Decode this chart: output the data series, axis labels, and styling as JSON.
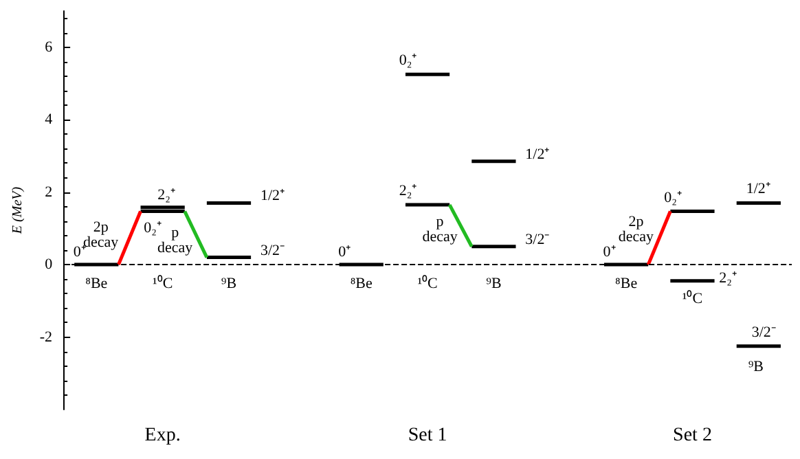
{
  "chart_data": {
    "type": "line",
    "ylabel": "E (MeV)",
    "categories": [
      null,
      null,
      null,
      null,
      "Exp.",
      null,
      null,
      null,
      null,
      null,
      null,
      null,
      null,
      null,
      null,
      null,
      "Set 1",
      null,
      null,
      null,
      null,
      null,
      null,
      null,
      null,
      null,
      null,
      null,
      "Set 2",
      null,
      null,
      null,
      null
    ],
    "ylim": [
      -4,
      7
    ],
    "yticks": [
      -2,
      0,
      2,
      4,
      6
    ],
    "marker": "none",
    "line_style": "solid",
    "grid": false,
    "series": [
      {
        "color": "#000000",
        "values": [
          0,
          0,
          0,
          null,
          null,
          null,
          null,
          null,
          null,
          null,
          null,
          null,
          null,
          null,
          null,
          null,
          null,
          null,
          null,
          null,
          null,
          null,
          null,
          null,
          null,
          null,
          null,
          null,
          null,
          null,
          null,
          null,
          null
        ]
      },
      {
        "color": "#000000",
        "values": [
          null,
          null,
          null,
          1.58,
          1.58,
          1.58,
          null,
          null,
          null,
          null,
          null,
          null,
          null,
          null,
          null,
          null,
          null,
          null,
          null,
          null,
          null,
          null,
          null,
          null,
          null,
          null,
          null,
          null,
          null,
          null,
          null,
          null,
          null
        ]
      },
      {
        "color": "#000000",
        "values": [
          null,
          null,
          null,
          1.47,
          1.47,
          1.47,
          null,
          null,
          null,
          null,
          null,
          null,
          null,
          null,
          null,
          null,
          null,
          null,
          null,
          null,
          null,
          null,
          null,
          null,
          null,
          null,
          null,
          null,
          null,
          null,
          null,
          null,
          null
        ]
      },
      {
        "color": "#000000",
        "values": [
          null,
          null,
          null,
          null,
          null,
          null,
          0.2,
          0.2,
          0.2,
          null,
          null,
          null,
          null,
          null,
          null,
          null,
          null,
          null,
          null,
          null,
          null,
          null,
          null,
          null,
          null,
          null,
          null,
          null,
          null,
          null,
          null,
          null,
          null
        ]
      },
      {
        "color": "#000000",
        "values": [
          null,
          null,
          null,
          null,
          null,
          null,
          1.7,
          1.7,
          1.7,
          null,
          null,
          null,
          null,
          null,
          null,
          null,
          null,
          null,
          null,
          null,
          null,
          null,
          null,
          null,
          null,
          null,
          null,
          null,
          null,
          null,
          null,
          null,
          null
        ]
      },
      {
        "color": "#ff0000",
        "values": [
          null,
          null,
          0,
          1.47,
          null,
          null,
          null,
          null,
          null,
          null,
          null,
          null,
          null,
          null,
          null,
          null,
          null,
          null,
          null,
          null,
          null,
          null,
          null,
          null,
          null,
          null,
          null,
          null,
          null,
          null,
          null,
          null,
          null
        ]
      },
      {
        "color": "#22bb22",
        "values": [
          null,
          null,
          null,
          null,
          null,
          1.47,
          0.2,
          null,
          null,
          null,
          null,
          null,
          null,
          null,
          null,
          null,
          null,
          null,
          null,
          null,
          null,
          null,
          null,
          null,
          null,
          null,
          null,
          null,
          null,
          null,
          null,
          null,
          null
        ]
      },
      {
        "color": "#000000",
        "values": [
          null,
          null,
          null,
          null,
          null,
          null,
          null,
          null,
          null,
          null,
          null,
          null,
          0,
          0,
          0,
          null,
          null,
          null,
          null,
          null,
          null,
          null,
          null,
          null,
          null,
          null,
          null,
          null,
          null,
          null,
          null,
          null,
          null
        ]
      },
      {
        "color": "#000000",
        "values": [
          null,
          null,
          null,
          null,
          null,
          null,
          null,
          null,
          null,
          null,
          null,
          null,
          null,
          null,
          null,
          5.25,
          5.25,
          5.25,
          null,
          null,
          null,
          null,
          null,
          null,
          null,
          null,
          null,
          null,
          null,
          null,
          null,
          null,
          null
        ]
      },
      {
        "color": "#000000",
        "values": [
          null,
          null,
          null,
          null,
          null,
          null,
          null,
          null,
          null,
          null,
          null,
          null,
          null,
          null,
          null,
          1.65,
          1.65,
          1.65,
          null,
          null,
          null,
          null,
          null,
          null,
          null,
          null,
          null,
          null,
          null,
          null,
          null,
          null,
          null
        ]
      },
      {
        "color": "#000000",
        "values": [
          null,
          null,
          null,
          null,
          null,
          null,
          null,
          null,
          null,
          null,
          null,
          null,
          null,
          null,
          null,
          null,
          null,
          null,
          2.85,
          2.85,
          2.85,
          null,
          null,
          null,
          null,
          null,
          null,
          null,
          null,
          null,
          null,
          null,
          null
        ]
      },
      {
        "color": "#000000",
        "values": [
          null,
          null,
          null,
          null,
          null,
          null,
          null,
          null,
          null,
          null,
          null,
          null,
          null,
          null,
          null,
          null,
          null,
          null,
          0.5,
          0.5,
          0.5,
          null,
          null,
          null,
          null,
          null,
          null,
          null,
          null,
          null,
          null,
          null,
          null
        ]
      },
      {
        "color": "#22bb22",
        "values": [
          null,
          null,
          null,
          null,
          null,
          null,
          null,
          null,
          null,
          null,
          null,
          null,
          null,
          null,
          null,
          null,
          null,
          1.65,
          0.5,
          null,
          null,
          null,
          null,
          null,
          null,
          null,
          null,
          null,
          null,
          null,
          null,
          null,
          null
        ]
      },
      {
        "color": "#000000",
        "values": [
          null,
          null,
          null,
          null,
          null,
          null,
          null,
          null,
          null,
          null,
          null,
          null,
          null,
          null,
          null,
          null,
          null,
          null,
          null,
          null,
          null,
          null,
          null,
          null,
          0,
          0,
          0,
          null,
          null,
          null,
          null,
          null,
          null
        ]
      },
      {
        "color": "#000000",
        "values": [
          null,
          null,
          null,
          null,
          null,
          null,
          null,
          null,
          null,
          null,
          null,
          null,
          null,
          null,
          null,
          null,
          null,
          null,
          null,
          null,
          null,
          null,
          null,
          null,
          null,
          null,
          null,
          1.47,
          1.47,
          1.47,
          null,
          null,
          null
        ]
      },
      {
        "color": "#000000",
        "values": [
          null,
          null,
          null,
          null,
          null,
          null,
          null,
          null,
          null,
          null,
          null,
          null,
          null,
          null,
          null,
          null,
          null,
          null,
          null,
          null,
          null,
          null,
          null,
          null,
          null,
          null,
          null,
          -0.45,
          -0.45,
          -0.45,
          null,
          null,
          null
        ]
      },
      {
        "color": "#000000",
        "values": [
          null,
          null,
          null,
          null,
          null,
          null,
          null,
          null,
          null,
          null,
          null,
          null,
          null,
          null,
          null,
          null,
          null,
          null,
          null,
          null,
          null,
          null,
          null,
          null,
          null,
          null,
          null,
          null,
          null,
          null,
          1.7,
          1.7,
          1.7
        ]
      },
      {
        "color": "#000000",
        "values": [
          null,
          null,
          null,
          null,
          null,
          null,
          null,
          null,
          null,
          null,
          null,
          null,
          null,
          null,
          null,
          null,
          null,
          null,
          null,
          null,
          null,
          null,
          null,
          null,
          null,
          null,
          null,
          null,
          null,
          null,
          -2.25,
          -2.25,
          -2.25
        ]
      },
      {
        "color": "#ff0000",
        "values": [
          null,
          null,
          null,
          null,
          null,
          null,
          null,
          null,
          null,
          null,
          null,
          null,
          null,
          null,
          null,
          null,
          null,
          null,
          null,
          null,
          null,
          null,
          null,
          null,
          null,
          null,
          0,
          1.47,
          null,
          null,
          null,
          null,
          null
        ]
      }
    ],
    "ref_lines": [
      {
        "axis": "y",
        "value": 0,
        "color": "#000000",
        "line_style": "dashed"
      }
    ],
    "annotations": [
      "0⁺",
      "⁸Be",
      "2p\ndecay",
      "2₂⁺",
      "0₂⁺",
      "p\ndecay",
      "1/2⁺",
      "3/2⁻",
      "¹⁰C",
      "⁹B",
      "0⁺",
      "⁸Be",
      "0₂⁺",
      "1/2⁺",
      "2₂⁺",
      "p\ndecay",
      "3/2⁻",
      "¹⁰C",
      "⁹B",
      "0⁺",
      "⁸Be",
      "2p\ndecay",
      "0₂⁺",
      "2₂⁺",
      "¹⁰C",
      "1/2⁺",
      "3/2⁻",
      "⁹B"
    ]
  }
}
